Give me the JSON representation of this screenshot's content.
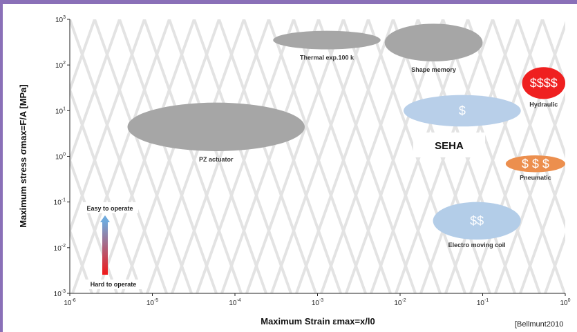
{
  "chart_data": {
    "type": "scatter",
    "xlabel": "Maximum Strain εmax=x/l0",
    "ylabel": "Maximum stress σmax=F/A [MPa]",
    "xscale": "log",
    "yscale": "log",
    "xlim": [
      1e-06,
      1
    ],
    "ylim": [
      0.001,
      1000
    ],
    "x_ticks": [
      {
        "value": 1e-06,
        "base": "10",
        "exp": "-6"
      },
      {
        "value": 1e-05,
        "base": "10",
        "exp": "-5"
      },
      {
        "value": 0.0001,
        "base": "10",
        "exp": "-4"
      },
      {
        "value": 0.001,
        "base": "10",
        "exp": "-3"
      },
      {
        "value": 0.01,
        "base": "10",
        "exp": "-2"
      },
      {
        "value": 0.1,
        "base": "10",
        "exp": "-1"
      },
      {
        "value": 1,
        "base": "10",
        "exp": "0"
      }
    ],
    "y_ticks": [
      {
        "value": 0.001,
        "base": "10",
        "exp": "-3"
      },
      {
        "value": 0.01,
        "base": "10",
        "exp": "-2"
      },
      {
        "value": 0.1,
        "base": "10",
        "exp": "-1"
      },
      {
        "value": 1,
        "base": "10",
        "exp": "0"
      },
      {
        "value": 10,
        "base": "10",
        "exp": "1"
      },
      {
        "value": 100,
        "base": "10",
        "exp": "2"
      },
      {
        "value": 1000,
        "base": "10",
        "exp": "3"
      }
    ],
    "regions": [
      {
        "name": "PZ actuator",
        "label": "PZ actuator",
        "x": 7e-05,
        "y": 4.5,
        "x_range": [
          5e-06,
          0.0007
        ],
        "y_range": [
          1.3,
          15
        ],
        "color": "#a6a6a6",
        "text_color": "#333333",
        "label_pos": "below"
      },
      {
        "name": "Thermal exp.100 k",
        "label": "Thermal exp.100 k",
        "x": 0.0013,
        "y": 350,
        "x_range": [
          0.00029,
          0.0058
        ],
        "y_range": [
          220,
          560
        ],
        "color": "#a6a6a6",
        "text_color": "#333333",
        "label_pos": "below"
      },
      {
        "name": "Shape memory",
        "label": "Shape memory",
        "x": 0.025,
        "y": 300,
        "x_range": [
          0.0065,
          0.1
        ],
        "y_range": [
          120,
          800
        ],
        "color": "#a6a6a6",
        "text_color": "#333333",
        "label_pos": "below"
      },
      {
        "name": "Hydraulic",
        "label": "$$$$",
        "caption": "Hydraulic",
        "x": 0.55,
        "y": 40,
        "x_range": [
          0.12,
          2.5
        ],
        "y_range": [
          18,
          90
        ],
        "color": "#ef2020",
        "text_color": "#ffffff",
        "label_pos": "below"
      },
      {
        "name": "SEHA",
        "label": "$",
        "x": 0.055,
        "y": 10,
        "x_range": [
          0.011,
          0.29
        ],
        "y_range": [
          4.5,
          22
        ],
        "color": "#b8cfe9",
        "text_color": "#ffffff",
        "label_pos": "none"
      },
      {
        "name": "Pneumatic",
        "label": "$ $ $",
        "caption": "Pneumatic",
        "x": 0.38,
        "y": 0.7,
        "x_range": [
          0.1,
          1.9
        ],
        "y_range": [
          0.45,
          1.05
        ],
        "color": "#ec8f4e",
        "text_color": "#ffffff",
        "label_pos": "below"
      },
      {
        "name": "Electro moving coil",
        "label": "$$",
        "caption": "Electro moving coil",
        "x": 0.085,
        "y": 0.04,
        "x_range": [
          0.025,
          0.29
        ],
        "y_range": [
          0.015,
          0.1
        ],
        "color": "#b3cde8",
        "text_color": "#ffffff",
        "label_pos": "below"
      }
    ],
    "annotations": {
      "seha": "SEHA",
      "easy": "Easy to operate",
      "hard": "Hard to operate",
      "citation": "[Bellmunt2010"
    },
    "gradient_colors": [
      "#6fa9dc",
      "#f01818"
    ],
    "grid_color": "#e3e3e3"
  }
}
